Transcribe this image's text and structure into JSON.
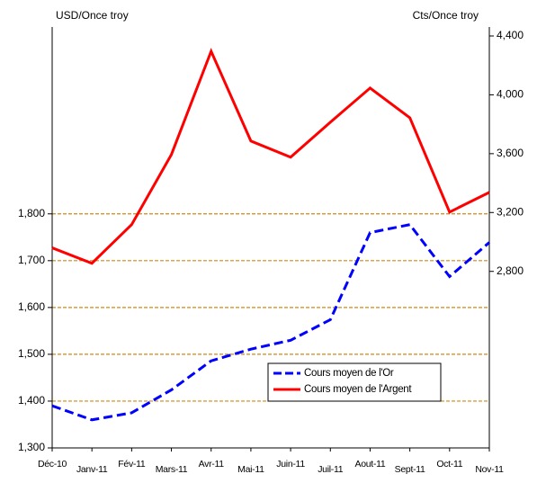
{
  "chart_data": {
    "type": "line",
    "y_label": "USD/Once troy",
    "y2_label": "Cts/Once troy",
    "categories": [
      "Déc-10",
      "Janv-11",
      "Fév-11",
      "Mars-11",
      "Avr-11",
      "Mai-11",
      "Juin-11",
      "Juil-11",
      "Aout-11",
      "Sept-11",
      "Oct-11",
      "Nov-11"
    ],
    "series": [
      {
        "name": "Cours moyen de l'Or",
        "color": "#0000ff",
        "dash": true,
        "values": [
          1390,
          1360,
          1375,
          1424,
          1486,
          1511,
          1530,
          1574,
          1760,
          1777,
          1666,
          1739
        ]
      },
      {
        "name": "Cours moyen de l'Argent",
        "color": "#ff0000",
        "axis": "y2",
        "values": [
          2960,
          2855,
          3118,
          3594,
          4296,
          3686,
          3576,
          3814,
          4046,
          3844,
          3203,
          3337
        ]
      }
    ],
    "ylim": [
      1300,
      2180
    ],
    "yticks": [
      {
        "value": 1300,
        "label": "1,300"
      },
      {
        "value": 1400,
        "label": "1,400"
      },
      {
        "value": 1500,
        "label": "1,500"
      },
      {
        "value": 1600,
        "label": "1,600"
      },
      {
        "value": 1700,
        "label": "1,700"
      },
      {
        "value": 1800,
        "label": "1,800"
      }
    ],
    "y2lim": [
      1600,
      4400
    ],
    "y2ticks": [
      {
        "value": 2800,
        "label": "2,800"
      },
      {
        "value": 3200,
        "label": "3,200"
      },
      {
        "value": 3600,
        "label": "3,600"
      },
      {
        "value": 4000,
        "label": "4,000"
      },
      {
        "value": 4400,
        "label": "4,400"
      }
    ],
    "grid": true,
    "grid_color": "#cc8a1a",
    "legend": "lower right"
  }
}
